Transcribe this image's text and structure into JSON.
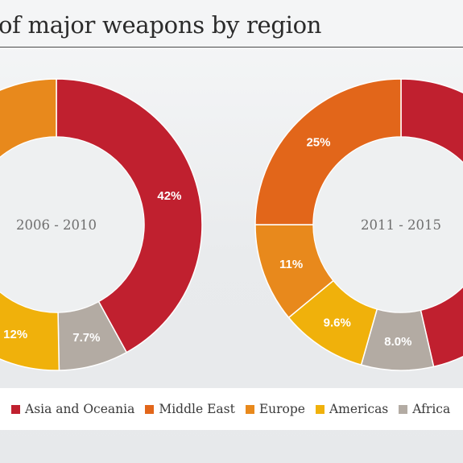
{
  "title": "of major weapons by region",
  "colors": {
    "asia_oceania": "#c0202f",
    "middle_east": "#e2661a",
    "europe": "#e8891c",
    "americas": "#f0b10b",
    "africa": "#b3aba3"
  },
  "legend": [
    {
      "label": "Asia and Oceania",
      "color": "#c0202f"
    },
    {
      "label": "Middle East",
      "color": "#e2661a"
    },
    {
      "label": "Europe",
      "color": "#e8891c"
    },
    {
      "label": "Americas",
      "color": "#f0b10b"
    },
    {
      "label": "Africa",
      "color": "#b3aba3"
    }
  ],
  "chart_data": [
    {
      "type": "pie",
      "center_label": "2006 - 2010",
      "slices": [
        {
          "category": "Asia and Oceania",
          "value": 42,
          "label": "42%",
          "color": "#c0202f"
        },
        {
          "category": "Africa",
          "value": 7.7,
          "label": "7.7%",
          "color": "#b3aba3"
        },
        {
          "category": "Americas",
          "value": 12,
          "label": "12%",
          "color": "#f0b10b"
        },
        {
          "category": "Europe",
          "value": null,
          "label": "",
          "color": "#e8891c"
        }
      ]
    },
    {
      "type": "pie",
      "center_label": "2011 - 2015",
      "slices": [
        {
          "category": "Asia and Oceania",
          "value": null,
          "label": "",
          "color": "#c0202f"
        },
        {
          "category": "Africa",
          "value": 8.0,
          "label": "8.0%",
          "color": "#b3aba3"
        },
        {
          "category": "Americas",
          "value": 9.6,
          "label": "9.6%",
          "color": "#f0b10b"
        },
        {
          "category": "Europe",
          "value": 11,
          "label": "11%",
          "color": "#e8891c"
        },
        {
          "category": "Middle East",
          "value": 25,
          "label": "25%",
          "color": "#e2661a"
        }
      ]
    }
  ]
}
